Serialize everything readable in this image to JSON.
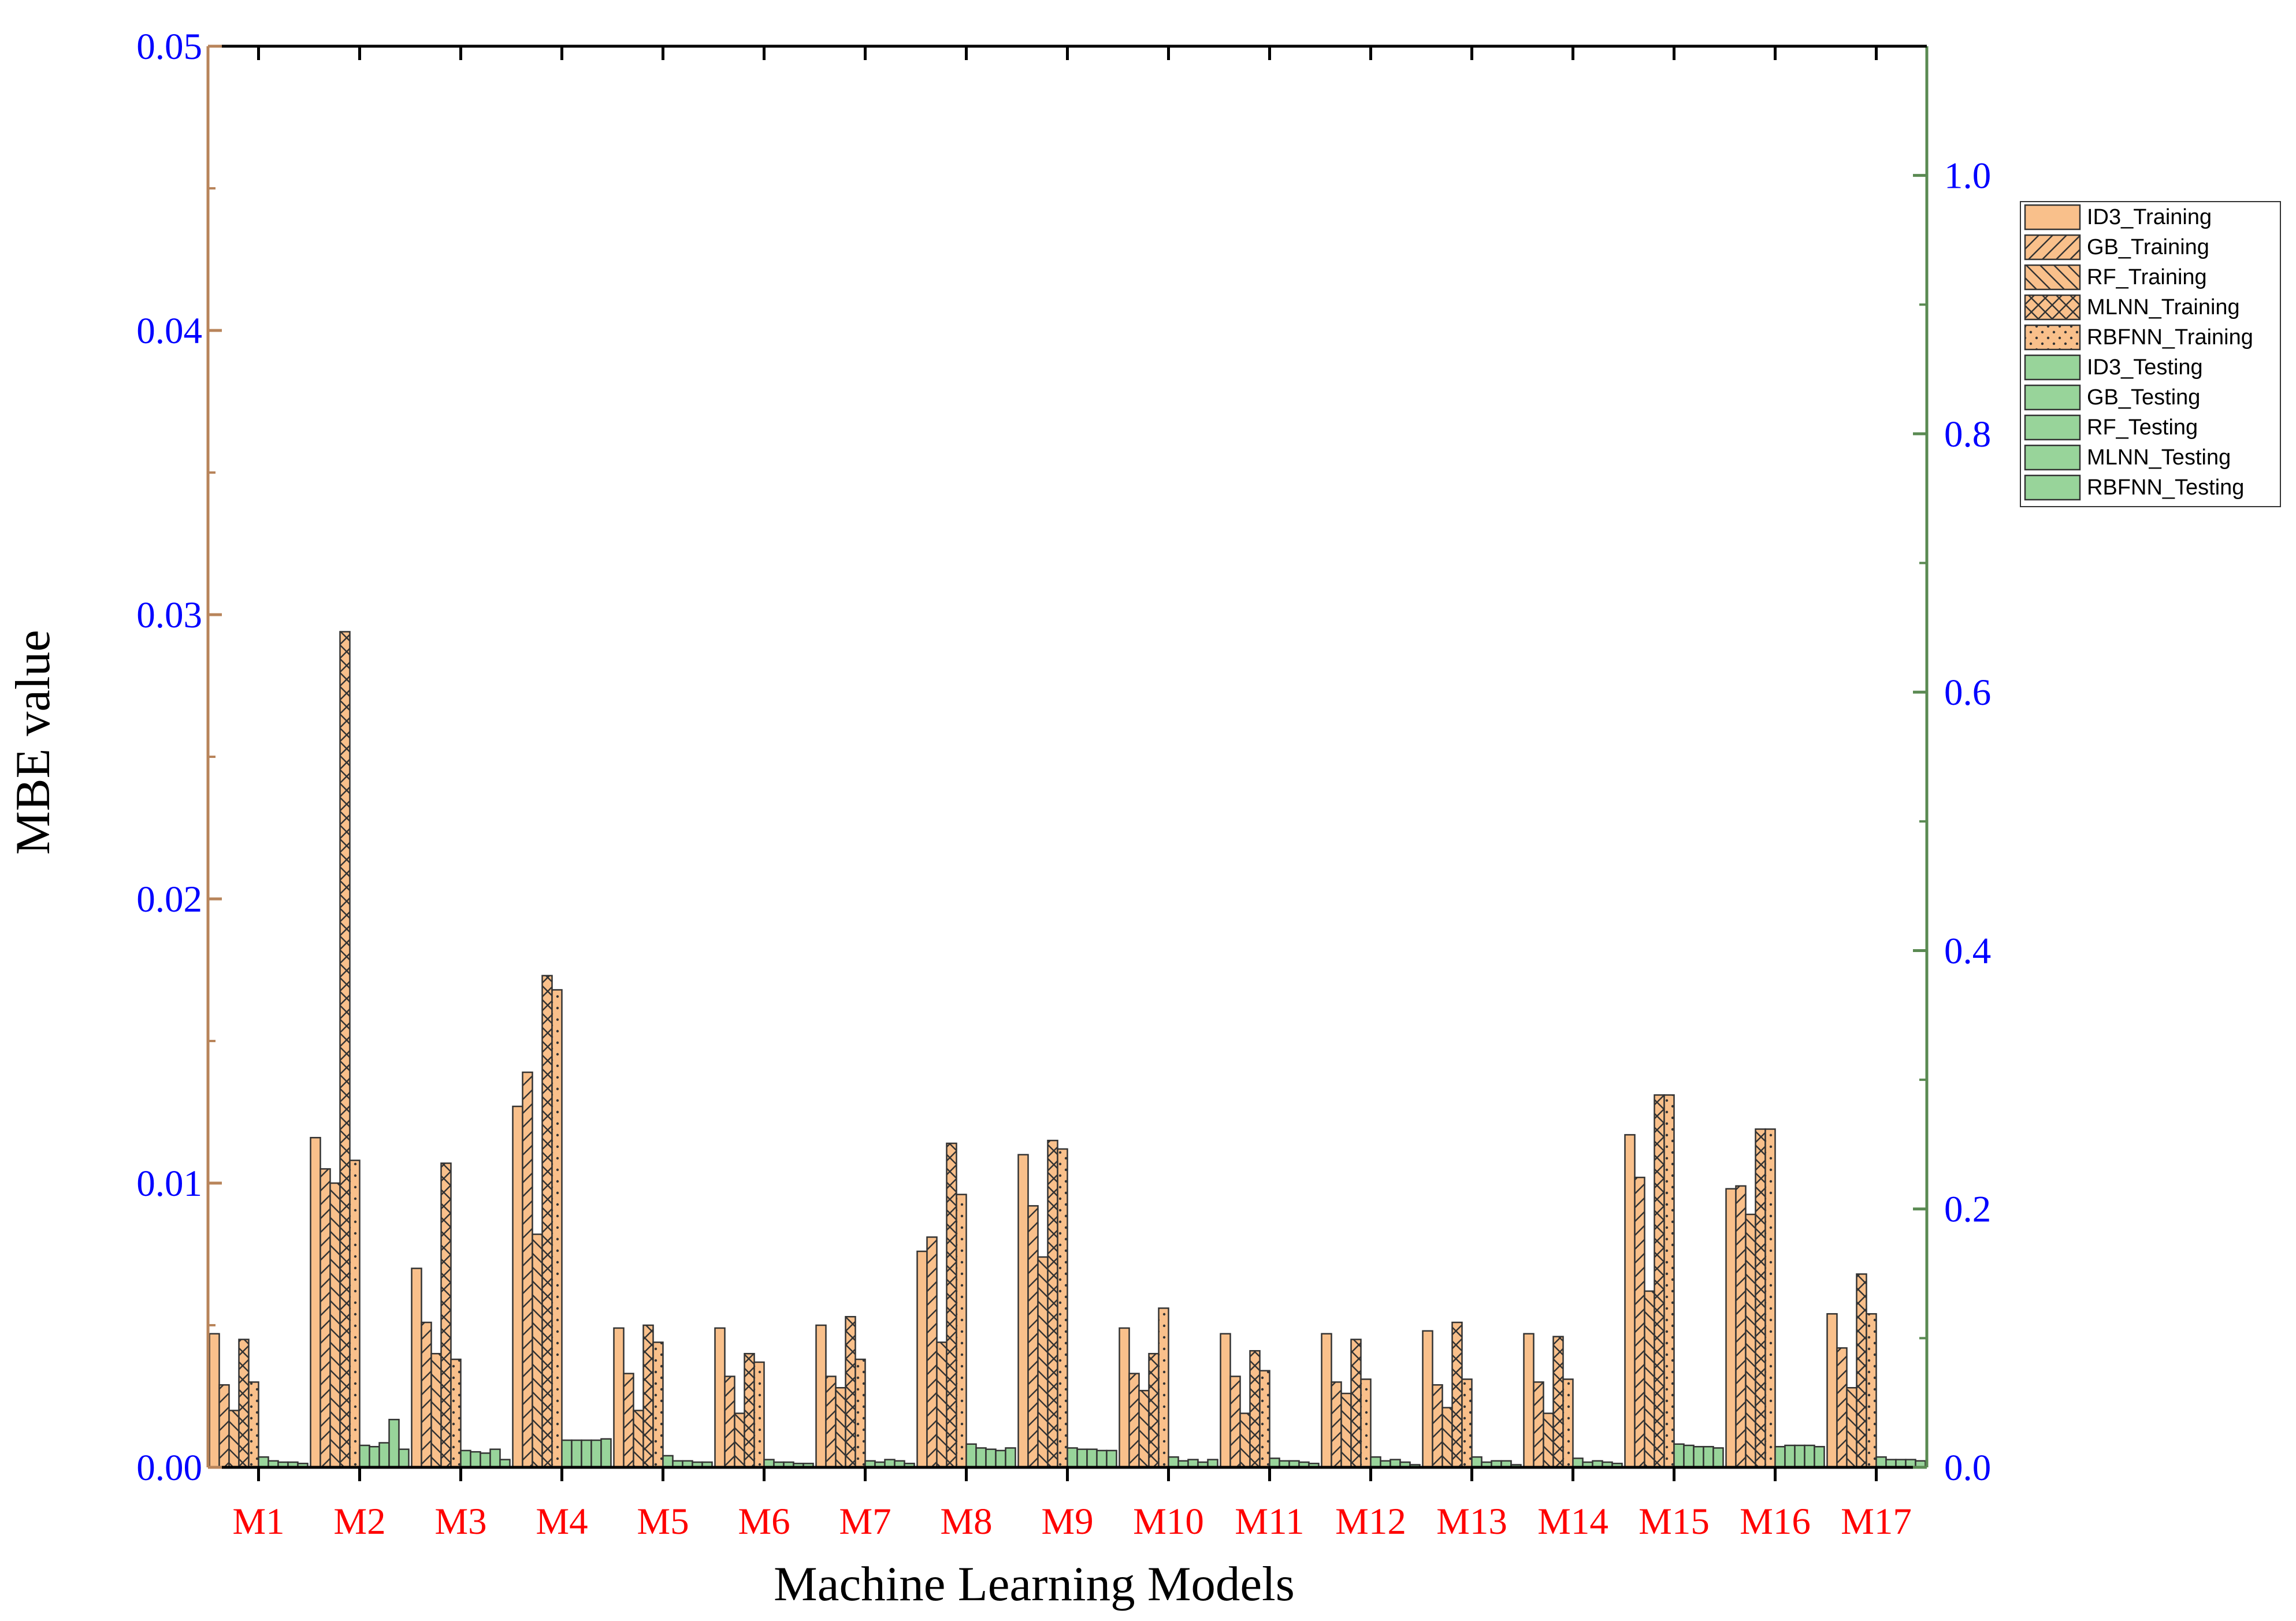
{
  "chart_data": {
    "type": "bar",
    "xlabel": "Machine Learning Models",
    "ylabel": "MBE value",
    "ylim": [
      0,
      0.05
    ],
    "ylim_right": [
      0,
      1.1
    ],
    "yticks": [
      "0.00",
      "0.01",
      "0.02",
      "0.03",
      "0.04",
      "0.05"
    ],
    "yticks_right": [
      "0.0",
      "0.2",
      "0.4",
      "0.6",
      "0.8",
      "1.0"
    ],
    "categories": [
      "M1",
      "M2",
      "M3",
      "M4",
      "M5",
      "M6",
      "M7",
      "M8",
      "M9",
      "M10",
      "M11",
      "M12",
      "M13",
      "M14",
      "M15",
      "M16",
      "M17"
    ],
    "legend_position": "right",
    "colors": {
      "training": "#f9c08b",
      "testing": "#98d49a",
      "left_axis": "#b8845a",
      "right_axis": "#5a8a52"
    },
    "series": [
      {
        "name": "ID3_Training",
        "axis": "left",
        "pattern": "none",
        "values": [
          0.0047,
          0.0116,
          0.007,
          0.0127,
          0.0049,
          0.0049,
          0.005,
          0.0076,
          0.011,
          0.0049,
          0.0047,
          0.0047,
          0.0048,
          0.0047,
          0.0117,
          0.0098,
          0.0054
        ]
      },
      {
        "name": "GB_Training",
        "axis": "left",
        "pattern": "diag-up",
        "values": [
          0.0029,
          0.0105,
          0.0051,
          0.0139,
          0.0033,
          0.0032,
          0.0032,
          0.0081,
          0.0092,
          0.0033,
          0.0032,
          0.003,
          0.0029,
          0.003,
          0.0102,
          0.0099,
          0.0042
        ]
      },
      {
        "name": "RF_Training",
        "axis": "left",
        "pattern": "diag-down",
        "values": [
          0.002,
          0.01,
          0.004,
          0.0082,
          0.002,
          0.0019,
          0.0028,
          0.0044,
          0.0074,
          0.0027,
          0.0019,
          0.0026,
          0.0021,
          0.0019,
          0.0062,
          0.0089,
          0.0028
        ]
      },
      {
        "name": "MLNN_Training",
        "axis": "left",
        "pattern": "cross",
        "values": [
          0.0045,
          0.0294,
          0.0107,
          0.0173,
          0.005,
          0.004,
          0.0053,
          0.0114,
          0.0115,
          0.004,
          0.0041,
          0.0045,
          0.0051,
          0.0046,
          0.0131,
          0.0119,
          0.0068
        ]
      },
      {
        "name": "RBFNN_Training",
        "axis": "left",
        "pattern": "dots",
        "values": [
          0.003,
          0.0108,
          0.0038,
          0.0168,
          0.0044,
          0.0037,
          0.0038,
          0.0096,
          0.0112,
          0.0056,
          0.0034,
          0.0031,
          0.0031,
          0.0031,
          0.0131,
          0.0119,
          0.0054
        ]
      },
      {
        "name": "ID3_Testing",
        "axis": "right",
        "pattern": "none",
        "values": [
          0.008,
          0.017,
          0.013,
          0.021,
          0.009,
          0.006,
          0.005,
          0.018,
          0.015,
          0.008,
          0.007,
          0.008,
          0.008,
          0.007,
          0.018,
          0.016,
          0.008
        ]
      },
      {
        "name": "GB_Testing",
        "axis": "right",
        "pattern": "none",
        "values": [
          0.005,
          0.016,
          0.012,
          0.021,
          0.005,
          0.004,
          0.004,
          0.015,
          0.014,
          0.005,
          0.005,
          0.005,
          0.004,
          0.004,
          0.017,
          0.017,
          0.006
        ]
      },
      {
        "name": "RF_Testing",
        "axis": "right",
        "pattern": "none",
        "values": [
          0.004,
          0.019,
          0.011,
          0.021,
          0.005,
          0.004,
          0.006,
          0.014,
          0.014,
          0.006,
          0.005,
          0.006,
          0.005,
          0.005,
          0.016,
          0.017,
          0.006
        ]
      },
      {
        "name": "MLNN_Testing",
        "axis": "right",
        "pattern": "none",
        "values": [
          0.004,
          0.037,
          0.014,
          0.021,
          0.004,
          0.003,
          0.005,
          0.013,
          0.013,
          0.004,
          0.004,
          0.004,
          0.005,
          0.004,
          0.016,
          0.017,
          0.006
        ]
      },
      {
        "name": "RBFNN_Testing",
        "axis": "right",
        "pattern": "none",
        "values": [
          0.003,
          0.014,
          0.006,
          0.022,
          0.004,
          0.003,
          0.003,
          0.015,
          0.013,
          0.006,
          0.003,
          0.002,
          0.002,
          0.003,
          0.015,
          0.016,
          0.005
        ]
      }
    ]
  }
}
